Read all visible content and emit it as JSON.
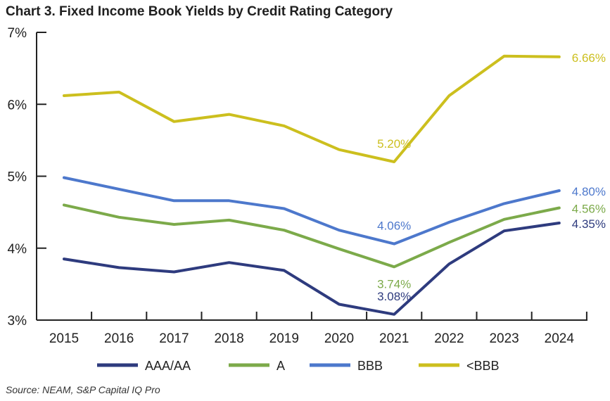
{
  "title": "Chart 3. Fixed Income Book Yields by Credit Rating Category",
  "source": "Source: NEAM, S&P Capital IQ Pro",
  "chart_data": {
    "type": "line",
    "title": "Chart 3. Fixed Income Book Yields by Credit Rating Category",
    "xlabel": "",
    "ylabel": "",
    "x": [
      "2015",
      "2016",
      "2017",
      "2018",
      "2019",
      "2020",
      "2021",
      "2022",
      "2023",
      "2024"
    ],
    "ylim": [
      3,
      7
    ],
    "yticks": [
      3,
      4,
      5,
      6,
      7
    ],
    "ytick_labels": [
      "3%",
      "4%",
      "5%",
      "6%",
      "7%"
    ],
    "grid": false,
    "legend_position": "bottom",
    "series": [
      {
        "name": "AAA/AA",
        "color": "#2e3b7e",
        "values": [
          3.85,
          3.73,
          3.67,
          3.8,
          3.69,
          3.22,
          3.08,
          3.78,
          4.24,
          4.35
        ],
        "labels": [
          {
            "index": 6,
            "text": "3.08%",
            "pos": "above"
          },
          {
            "index": 9,
            "text": "4.35%",
            "pos": "right"
          }
        ]
      },
      {
        "name": "A",
        "color": "#7caa4a",
        "values": [
          4.6,
          4.43,
          4.33,
          4.39,
          4.25,
          3.99,
          3.74,
          4.08,
          4.4,
          4.56
        ],
        "labels": [
          {
            "index": 6,
            "text": "3.74%",
            "pos": "below"
          },
          {
            "index": 9,
            "text": "4.56%",
            "pos": "right"
          }
        ]
      },
      {
        "name": "BBB",
        "color": "#4d78cc",
        "values": [
          4.98,
          4.82,
          4.66,
          4.66,
          4.55,
          4.25,
          4.06,
          4.36,
          4.62,
          4.8
        ],
        "labels": [
          {
            "index": 6,
            "text": "4.06%",
            "pos": "above"
          },
          {
            "index": 9,
            "text": "4.80%",
            "pos": "right"
          }
        ]
      },
      {
        "name": "<BBB",
        "color": "#ccbf1e",
        "values": [
          6.12,
          6.17,
          5.76,
          5.86,
          5.7,
          5.37,
          5.2,
          6.12,
          6.67,
          6.66
        ],
        "labels": [
          {
            "index": 6,
            "text": "5.20%",
            "pos": "above"
          },
          {
            "index": 9,
            "text": "6.66%",
            "pos": "right"
          }
        ]
      }
    ]
  }
}
